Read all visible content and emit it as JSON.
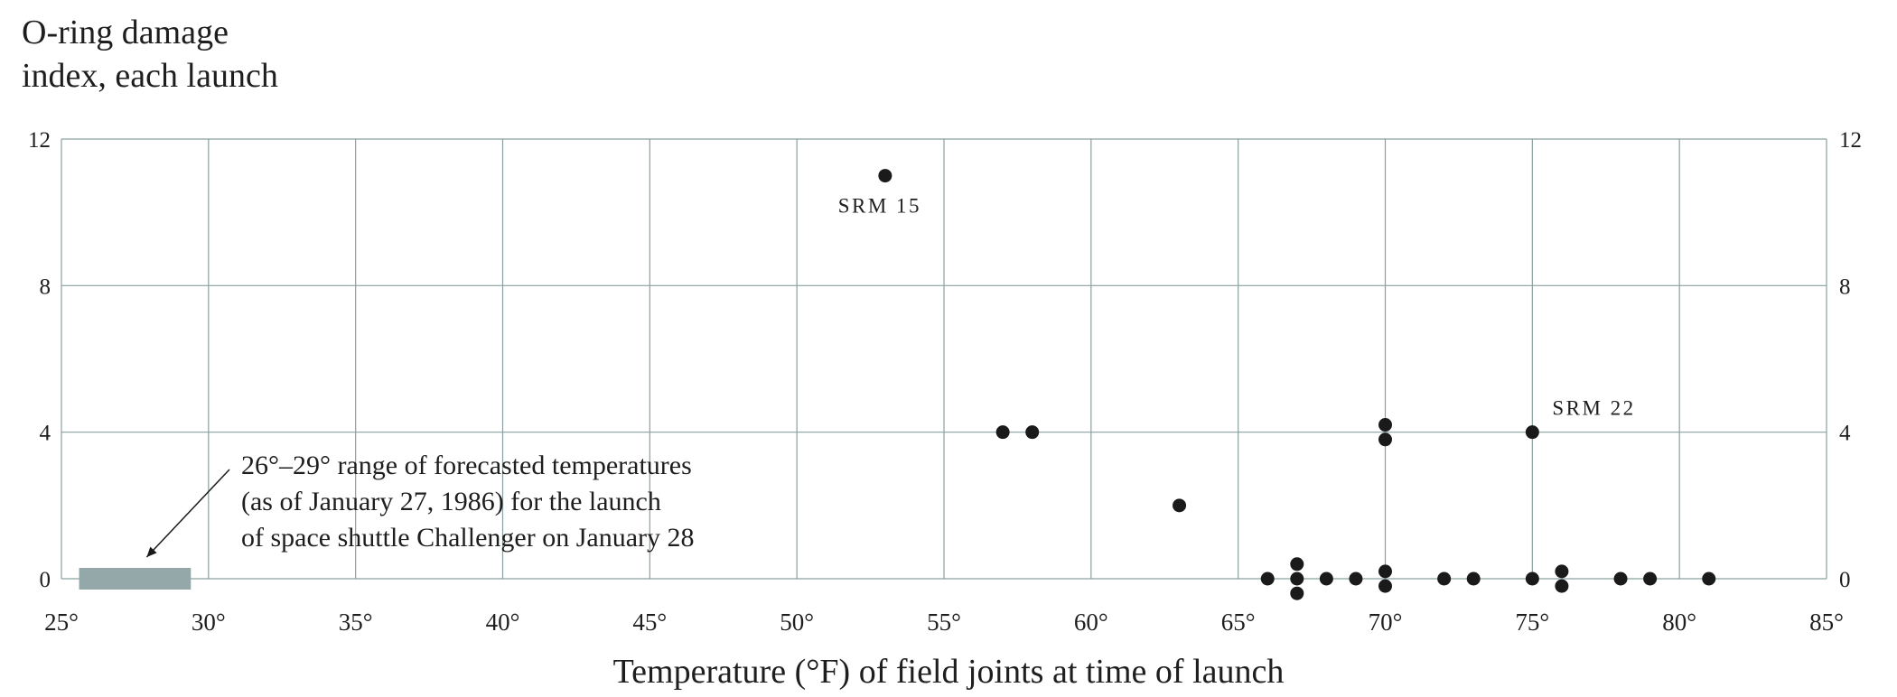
{
  "chart_data": {
    "type": "scatter",
    "ylabel_lines": [
      "O-ring damage",
      "index, each launch"
    ],
    "xlabel": "Temperature (°F) of field joints at time of launch",
    "xlim": [
      25,
      85
    ],
    "ylim": [
      0,
      12
    ],
    "x_ticks": [
      25,
      30,
      35,
      40,
      45,
      50,
      55,
      60,
      65,
      70,
      75,
      80,
      85
    ],
    "x_tick_labels": [
      "25°",
      "30°",
      "35°",
      "40°",
      "45°",
      "50°",
      "55°",
      "60°",
      "65°",
      "70°",
      "75°",
      "80°",
      "85°"
    ],
    "y_ticks": [
      0,
      4,
      8,
      12
    ],
    "y_tick_labels": [
      "0",
      "4",
      "8",
      "12"
    ],
    "grid": true,
    "points": [
      {
        "x": 53,
        "y": 11,
        "label": "SRM 15"
      },
      {
        "x": 57,
        "y": 4
      },
      {
        "x": 58,
        "y": 4
      },
      {
        "x": 63,
        "y": 2
      },
      {
        "x": 66,
        "y": 0
      },
      {
        "x": 67,
        "y": 0.4
      },
      {
        "x": 67,
        "y": 0
      },
      {
        "x": 67,
        "y": -0.4
      },
      {
        "x": 68,
        "y": 0
      },
      {
        "x": 69,
        "y": 0
      },
      {
        "x": 70,
        "y": 4.2
      },
      {
        "x": 70,
        "y": 3.8
      },
      {
        "x": 70,
        "y": 0.2
      },
      {
        "x": 70,
        "y": -0.2
      },
      {
        "x": 72,
        "y": 0
      },
      {
        "x": 73,
        "y": 0
      },
      {
        "x": 75,
        "y": 4,
        "label": "SRM 22"
      },
      {
        "x": 75,
        "y": 0
      },
      {
        "x": 76,
        "y": 0.2
      },
      {
        "x": 76,
        "y": -0.2
      },
      {
        "x": 78,
        "y": 0
      },
      {
        "x": 79,
        "y": 0
      },
      {
        "x": 81,
        "y": 0
      }
    ],
    "forecast_range": {
      "x_start": 26,
      "x_end": 29
    },
    "annotation_lines": [
      "26°–29° range of forecasted temperatures",
      "(as of January 27, 1986) for the launch",
      "of space shuttle Challenger on January 28"
    ],
    "colors": {
      "grid": "#8aa0a0",
      "point": "#1a1a1a",
      "forecast_band": "#94a7a9"
    }
  }
}
